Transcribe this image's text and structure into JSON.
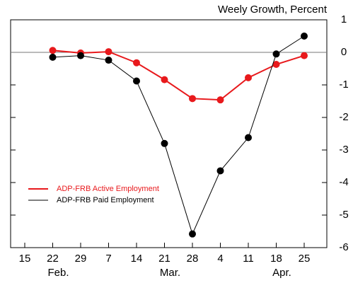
{
  "chart_data": {
    "type": "line",
    "title": "Weely Growth, Percent",
    "categories": [
      "15",
      "22",
      "29",
      "7",
      "14",
      "21",
      "28",
      "4",
      "11",
      "18",
      "25"
    ],
    "months": [
      null,
      "Feb.",
      null,
      null,
      null,
      "Mar.",
      null,
      null,
      null,
      "Apr.",
      null
    ],
    "series": [
      {
        "name": "ADP-FRB Active Employment",
        "color": "#e8191c",
        "values": [
          null,
          0.06,
          -0.02,
          0.02,
          -0.32,
          -0.84,
          -1.42,
          -1.46,
          -0.78,
          -0.37,
          -0.1
        ]
      },
      {
        "name": "ADP-FRB Paid Employment",
        "color": "#000000",
        "values": [
          null,
          -0.15,
          -0.1,
          -0.24,
          -0.88,
          -2.8,
          -5.58,
          -3.64,
          -2.62,
          -0.05,
          0.5
        ]
      }
    ],
    "ylim": [
      -6,
      1
    ],
    "yticks": [
      -6,
      -5,
      -4,
      -3,
      -2,
      -1,
      0,
      1
    ],
    "zero_line": true
  }
}
